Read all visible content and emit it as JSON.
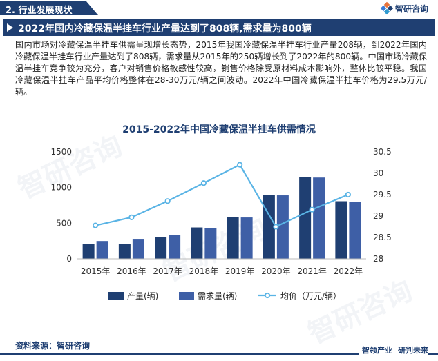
{
  "header": {
    "section": "2. 行业发展现状",
    "brand": "智研咨询"
  },
  "headline": "2022年国内冷藏保温半挂车行业产量达到了808辆,需求量为800辆",
  "paragraph": "国内市场对冷藏保温半挂车供需呈现增长态势，2015年我国冷藏保温半挂车行业产量208辆，到2022年国内冷藏保温半挂车行业产量达到了808辆，需求量从2015年的250辆增长到了2022年的800辆。中国市场冷藏保温半挂车竞争较为充分，客户对销售价格敏感性较高，销售价格除受原材料成本影响外，整体比较平稳。我国冷藏保温半挂车产品平均价格整体在28-30万元/辆之间波动。2022年中国冷藏保温半挂车价格为29.5万元/辆。",
  "chart_data": {
    "type": "bar",
    "title": "2015-2022年中国冷藏保温半挂车供需情况",
    "categories": [
      "2015年",
      "2016年",
      "2017年",
      "2018年",
      "2019年",
      "2020年",
      "2021年",
      "2022年"
    ],
    "series": [
      {
        "name": "产量(辆)",
        "type": "bar",
        "axis": "left",
        "color": "#1f3f72",
        "values": [
          208,
          210,
          300,
          440,
          590,
          900,
          1150,
          808
        ]
      },
      {
        "name": "需求量(辆)",
        "type": "bar",
        "axis": "left",
        "color": "#3e5fa6",
        "values": [
          250,
          280,
          330,
          430,
          580,
          890,
          1140,
          800
        ]
      },
      {
        "name": "均价（万元/辆）",
        "type": "line",
        "axis": "right",
        "color": "#5ab4e5",
        "values": [
          28.78,
          28.97,
          29.35,
          29.77,
          30.2,
          28.75,
          29.15,
          29.5
        ]
      }
    ],
    "y_left": {
      "min": 0,
      "max": 1500,
      "ticks": [
        "0",
        "500",
        "1000",
        "1500"
      ]
    },
    "y_right": {
      "min": 28,
      "max": 30.5,
      "ticks": [
        "28",
        "28.5",
        "29",
        "29.5",
        "30",
        "30.5"
      ]
    },
    "grid": false,
    "legend_position": "bottom"
  },
  "source": "资料来源：智研咨询",
  "footer_logo": {
    "left": "智领产业",
    "right": "研判未来"
  },
  "watermark": "智研咨询"
}
